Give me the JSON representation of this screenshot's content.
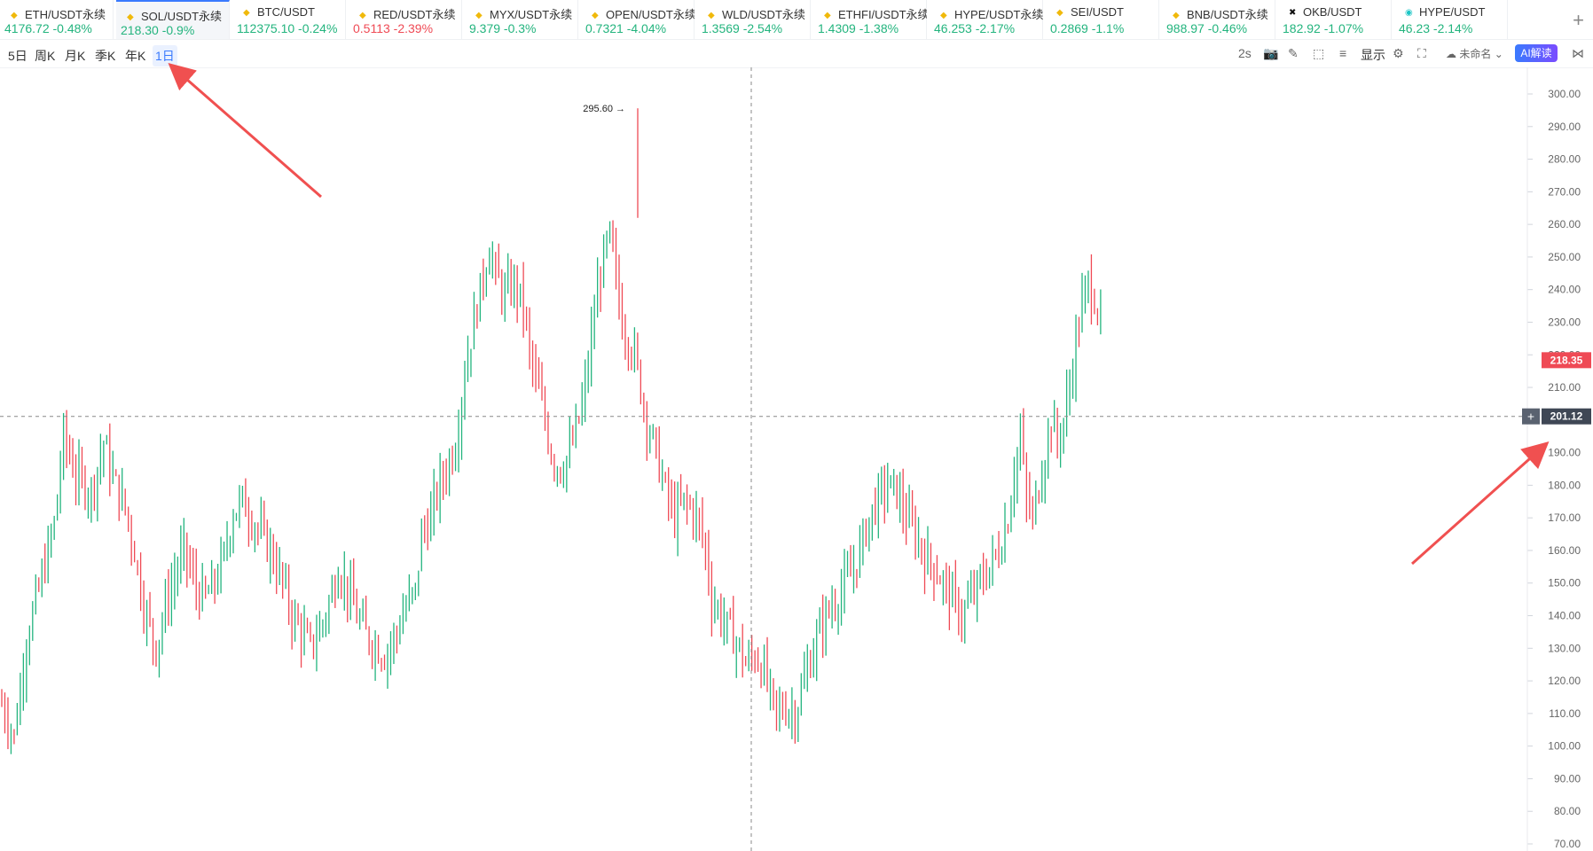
{
  "tickers": [
    {
      "symbol": "ETH/USDT永续",
      "price": "4176.72",
      "change": "-0.48%",
      "dir": "up",
      "icon": "binance-icon"
    },
    {
      "symbol": "SOL/USDT永续",
      "price": "218.30",
      "change": "-0.9%",
      "dir": "up",
      "icon": "binance-icon",
      "active": true
    },
    {
      "symbol": "BTC/USDT",
      "price": "112375.10",
      "change": "-0.24%",
      "dir": "up",
      "icon": "binance-icon"
    },
    {
      "symbol": "RED/USDT永续",
      "price": "0.5113",
      "change": "-2.39%",
      "dir": "down",
      "icon": "binance-icon"
    },
    {
      "symbol": "MYX/USDT永续",
      "price": "9.379",
      "change": "-0.3%",
      "dir": "up",
      "icon": "binance-icon"
    },
    {
      "symbol": "OPEN/USDT永续",
      "price": "0.7321",
      "change": "-4.04%",
      "dir": "up",
      "icon": "binance-icon"
    },
    {
      "symbol": "WLD/USDT永续",
      "price": "1.3569",
      "change": "-2.54%",
      "dir": "up",
      "icon": "binance-icon"
    },
    {
      "symbol": "ETHFI/USDT永续",
      "price": "1.4309",
      "change": "-1.38%",
      "dir": "up",
      "icon": "binance-icon"
    },
    {
      "symbol": "HYPE/USDT永续",
      "price": "46.253",
      "change": "-2.17%",
      "dir": "up",
      "icon": "binance-icon"
    },
    {
      "symbol": "SEI/USDT",
      "price": "0.2869",
      "change": "-1.1%",
      "dir": "up",
      "icon": "binance-icon"
    },
    {
      "symbol": "BNB/USDT永续",
      "price": "988.97",
      "change": "-0.46%",
      "dir": "up",
      "icon": "binance-icon"
    },
    {
      "symbol": "OKB/USDT",
      "price": "182.92",
      "change": "-1.07%",
      "dir": "up",
      "icon": "okx-icon"
    },
    {
      "symbol": "HYPE/USDT",
      "price": "46.23",
      "change": "-2.14%",
      "dir": "up",
      "icon": "hyperliquid-icon"
    }
  ],
  "toolbar": {
    "periods": [
      "5日",
      "周K",
      "月K",
      "季K",
      "年K",
      "1日"
    ],
    "active_period": "1日",
    "refresh": "2s",
    "display_label": "显示",
    "layout_name": "未命名",
    "ai_label": "AI解读"
  },
  "colors": {
    "up": "#23b47e",
    "down": "#ef4a55",
    "accent": "#3a7afe",
    "annotation": "#f05050"
  },
  "chart_data": {
    "type": "candlestick",
    "symbol": "SOL/USDT永续",
    "interval": "1日",
    "ylim": [
      70,
      300
    ],
    "y_ticks": [
      300,
      290,
      280,
      270,
      260,
      250,
      240,
      230,
      220,
      210,
      200,
      190,
      180,
      170,
      160,
      150,
      140,
      130,
      120,
      110,
      100,
      90,
      80,
      70
    ],
    "last_price": 218.35,
    "crosshair_price": 201.12,
    "max_marker": {
      "label": "295.60",
      "value": 295.6
    },
    "close_path": [
      [
        0,
        113
      ],
      [
        8,
        103
      ],
      [
        16,
        133
      ],
      [
        24,
        148
      ],
      [
        34,
        168
      ],
      [
        40,
        195
      ],
      [
        48,
        183
      ],
      [
        58,
        178
      ],
      [
        66,
        193
      ],
      [
        72,
        182
      ],
      [
        80,
        173
      ],
      [
        86,
        160
      ],
      [
        92,
        143
      ],
      [
        100,
        130
      ],
      [
        106,
        143
      ],
      [
        114,
        155
      ],
      [
        118,
        160
      ],
      [
        126,
        148
      ],
      [
        132,
        145
      ],
      [
        138,
        150
      ],
      [
        144,
        158
      ],
      [
        150,
        172
      ],
      [
        156,
        175
      ],
      [
        162,
        170
      ],
      [
        168,
        165
      ],
      [
        174,
        160
      ],
      [
        182,
        150
      ],
      [
        188,
        140
      ],
      [
        194,
        135
      ],
      [
        200,
        130
      ],
      [
        208,
        138
      ],
      [
        214,
        147
      ],
      [
        218,
        155
      ],
      [
        224,
        148
      ],
      [
        230,
        140
      ],
      [
        236,
        134
      ],
      [
        242,
        131
      ],
      [
        248,
        128
      ],
      [
        256,
        135
      ],
      [
        262,
        143
      ],
      [
        268,
        147
      ],
      [
        272,
        165
      ],
      [
        278,
        170
      ],
      [
        282,
        178
      ],
      [
        288,
        185
      ],
      [
        294,
        193
      ],
      [
        300,
        215
      ],
      [
        305,
        228
      ],
      [
        310,
        240
      ],
      [
        316,
        253
      ],
      [
        320,
        244
      ],
      [
        326,
        238
      ],
      [
        332,
        242
      ],
      [
        338,
        235
      ],
      [
        342,
        220
      ],
      [
        346,
        212
      ],
      [
        352,
        200
      ],
      [
        356,
        190
      ],
      [
        362,
        185
      ],
      [
        368,
        190
      ],
      [
        374,
        200
      ],
      [
        378,
        210
      ],
      [
        382,
        225
      ],
      [
        386,
        240
      ],
      [
        390,
        250
      ],
      [
        394,
        256
      ],
      [
        398,
        243
      ],
      [
        402,
        230
      ],
      [
        406,
        225
      ],
      [
        410,
        220
      ],
      [
        414,
        210
      ],
      [
        418,
        200
      ],
      [
        424,
        190
      ],
      [
        430,
        178
      ],
      [
        436,
        170
      ],
      [
        442,
        175
      ],
      [
        448,
        172
      ],
      [
        452,
        168
      ],
      [
        456,
        160
      ],
      [
        460,
        145
      ],
      [
        466,
        140
      ],
      [
        472,
        135
      ],
      [
        478,
        130
      ],
      [
        482,
        125
      ],
      [
        488,
        128
      ],
      [
        494,
        123
      ],
      [
        498,
        115
      ],
      [
        502,
        110
      ],
      [
        508,
        112
      ],
      [
        514,
        110
      ],
      [
        520,
        120
      ],
      [
        526,
        130
      ],
      [
        532,
        138
      ],
      [
        538,
        143
      ],
      [
        544,
        148
      ],
      [
        550,
        152
      ],
      [
        556,
        160
      ],
      [
        562,
        170
      ],
      [
        568,
        176
      ],
      [
        574,
        180
      ],
      [
        580,
        178
      ],
      [
        586,
        170
      ],
      [
        592,
        165
      ],
      [
        598,
        158
      ],
      [
        604,
        155
      ],
      [
        610,
        150
      ],
      [
        616,
        145
      ],
      [
        622,
        140
      ],
      [
        628,
        145
      ],
      [
        634,
        150
      ],
      [
        640,
        155
      ],
      [
        646,
        160
      ],
      [
        652,
        170
      ],
      [
        656,
        185
      ],
      [
        660,
        195
      ],
      [
        664,
        175
      ],
      [
        668,
        170
      ],
      [
        672,
        180
      ],
      [
        676,
        190
      ],
      [
        680,
        200
      ],
      [
        684,
        193
      ],
      [
        688,
        200
      ],
      [
        692,
        210
      ],
      [
        696,
        225
      ],
      [
        700,
        235
      ],
      [
        704,
        242
      ],
      [
        708,
        238
      ],
      [
        712,
        230
      ]
    ]
  }
}
